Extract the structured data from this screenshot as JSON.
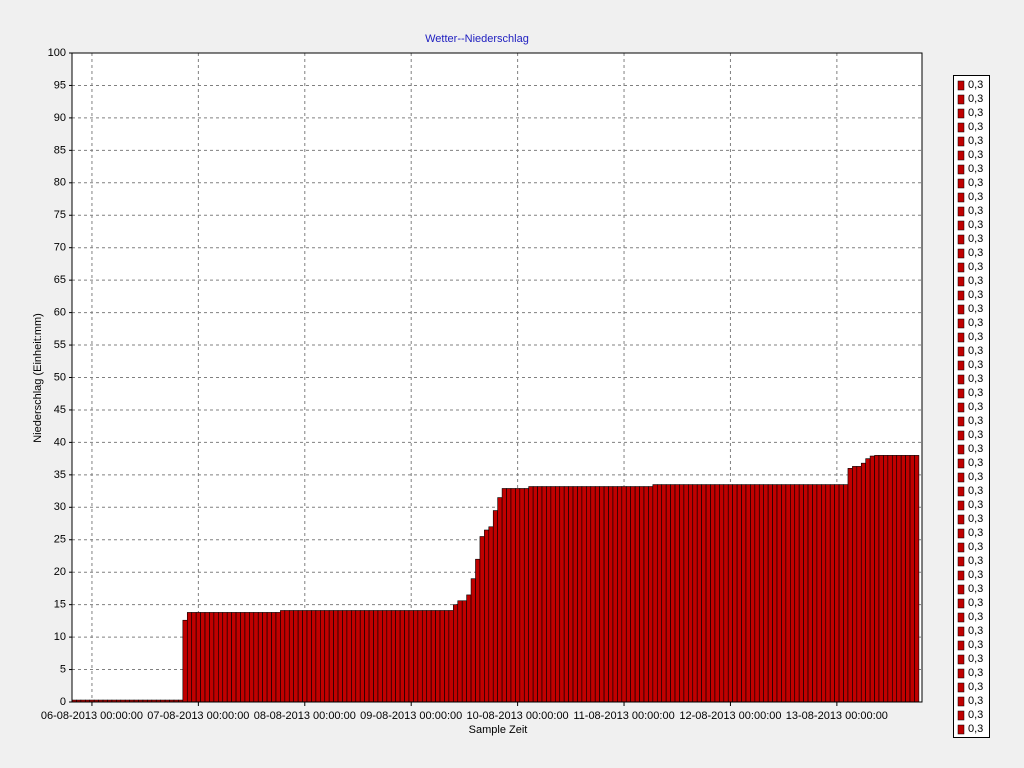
{
  "chart_data": {
    "type": "bar",
    "title": "Wetter--Niederschlag",
    "x_label": "Sample Zeit",
    "y_label": "Niederschlag (Einheit:mm)",
    "x": [
      -4,
      -3,
      -2,
      -1,
      0,
      1,
      2,
      3,
      4,
      5,
      6,
      7,
      8,
      9,
      10,
      11,
      12,
      13,
      14,
      15,
      16,
      17,
      18,
      19,
      20,
      21,
      22,
      23,
      24,
      25,
      26,
      27,
      28,
      29,
      30,
      31,
      32,
      33,
      34,
      35,
      36,
      37,
      38,
      39,
      40,
      41,
      42,
      43,
      44,
      45,
      46,
      47,
      48,
      49,
      50,
      51,
      52,
      53,
      54,
      55,
      56,
      57,
      58,
      59,
      60,
      61,
      62,
      63,
      64,
      65,
      66,
      67,
      68,
      69,
      70,
      71,
      72,
      73,
      74,
      75,
      76,
      77,
      78,
      79,
      80,
      81,
      82,
      83,
      84,
      85,
      86,
      87,
      88,
      89,
      90,
      91,
      92,
      93,
      94,
      95,
      96,
      97,
      98,
      99,
      100,
      101,
      102,
      103,
      104,
      105,
      106,
      107,
      108,
      109,
      110,
      111,
      112,
      113,
      114,
      115,
      116,
      117,
      118,
      119,
      120,
      121,
      122,
      123,
      124,
      125,
      126,
      127,
      128,
      129,
      130,
      131,
      132,
      133,
      134,
      135,
      136,
      137,
      138,
      139,
      140,
      141,
      142,
      143,
      144,
      145,
      146,
      147,
      148,
      149,
      150,
      151,
      152,
      153,
      154,
      155,
      156,
      157,
      158,
      159,
      160,
      161,
      162,
      163,
      164,
      165,
      166,
      167,
      168,
      169,
      170,
      171,
      172,
      173,
      174,
      175,
      176,
      177,
      178,
      179,
      180,
      181,
      182,
      183,
      184,
      185,
      186
    ],
    "series": [
      {
        "color": "#c00000",
        "values": [
          0.3,
          0.3,
          0.3,
          0.3,
          0.3,
          0.3,
          0.3,
          0.3,
          0.3,
          0.3,
          0.3,
          0.3,
          0.3,
          0.3,
          0.3,
          0.3,
          0.3,
          0.3,
          0.3,
          0.3,
          0.3,
          0.3,
          0.3,
          0.3,
          0.3,
          12.6,
          13.8,
          13.8,
          13.8,
          13.8,
          13.8,
          13.8,
          13.8,
          13.8,
          13.8,
          13.8,
          13.8,
          13.8,
          13.8,
          13.8,
          13.8,
          13.8,
          13.8,
          13.8,
          13.8,
          13.8,
          13.8,
          14.1,
          14.1,
          14.1,
          14.1,
          14.1,
          14.1,
          14.1,
          14.1,
          14.1,
          14.1,
          14.1,
          14.1,
          14.1,
          14.1,
          14.1,
          14.1,
          14.1,
          14.1,
          14.1,
          14.1,
          14.1,
          14.1,
          14.1,
          14.1,
          14.1,
          14.1,
          14.1,
          14.1,
          14.1,
          14.1,
          14.1,
          14.1,
          14.1,
          14.1,
          14.1,
          14.1,
          14.1,
          14.1,
          14.1,
          15.0,
          15.6,
          15.6,
          16.5,
          19,
          22,
          25.5,
          26.5,
          27,
          29.5,
          31.5,
          32.9,
          32.9,
          32.9,
          32.9,
          32.9,
          32.9,
          33.2,
          33.2,
          33.2,
          33.2,
          33.2,
          33.2,
          33.2,
          33.2,
          33.2,
          33.2,
          33.2,
          33.2,
          33.2,
          33.2,
          33.2,
          33.2,
          33.2,
          33.2,
          33.2,
          33.2,
          33.2,
          33.2,
          33.2,
          33.2,
          33.2,
          33.2,
          33.2,
          33.2,
          33.5,
          33.5,
          33.5,
          33.5,
          33.5,
          33.5,
          33.5,
          33.5,
          33.5,
          33.5,
          33.5,
          33.5,
          33.5,
          33.5,
          33.5,
          33.5,
          33.5,
          33.5,
          33.5,
          33.5,
          33.5,
          33.5,
          33.5,
          33.5,
          33.5,
          33.5,
          33.5,
          33.5,
          33.5,
          33.5,
          33.5,
          33.5,
          33.5,
          33.5,
          33.5,
          33.5,
          33.5,
          33.5,
          33.5,
          33.5,
          33.5,
          33.5,
          33.5,
          33.5,
          36.0,
          36.3,
          36.3,
          36.8,
          37.5,
          37.9,
          38.0,
          38.0,
          38.0,
          38.0,
          38.0,
          38.0,
          38.0,
          38.0,
          38.0,
          38.0
        ]
      }
    ],
    "xlim": [
      -4.5,
      187.2
    ],
    "xticks": [
      {
        "value": 0,
        "label": "06-08-2013 00:00:00"
      },
      {
        "value": 24,
        "label": "07-08-2013 00:00:00"
      },
      {
        "value": 48,
        "label": "08-08-2013 00:00:00"
      },
      {
        "value": 72,
        "label": "09-08-2013 00:00:00"
      },
      {
        "value": 96,
        "label": "10-08-2013 00:00:00"
      },
      {
        "value": 120,
        "label": "11-08-2013 00:00:00"
      },
      {
        "value": 144,
        "label": "12-08-2013 00:00:00"
      },
      {
        "value": 168,
        "label": "13-08-2013 00:00:00"
      }
    ],
    "ylim": [
      0,
      100
    ],
    "yticks": [
      0,
      5,
      10,
      15,
      20,
      25,
      30,
      35,
      40,
      45,
      50,
      55,
      60,
      65,
      70,
      75,
      80,
      85,
      90,
      95,
      100
    ],
    "grid": true,
    "legend": [
      "0,3",
      "0,3",
      "0,3",
      "0,3",
      "0,3",
      "0,3",
      "0,3",
      "0,3",
      "0,3",
      "0,3",
      "0,3",
      "0,3",
      "0,3",
      "0,3",
      "0,3",
      "0,3",
      "0,3",
      "0,3",
      "0,3",
      "0,3",
      "0,3",
      "0,3",
      "0,3",
      "0,3",
      "0,3",
      "0,3",
      "0,3",
      "0,3",
      "0,3",
      "0,3",
      "0,3",
      "0,3",
      "0,3",
      "0,3",
      "0,3",
      "0,3",
      "0,3",
      "0,3",
      "0,3",
      "0,3",
      "0,3",
      "0,3",
      "0,3",
      "0,3",
      "0,3",
      "0,3",
      "0,3"
    ],
    "legend_position": "right"
  }
}
